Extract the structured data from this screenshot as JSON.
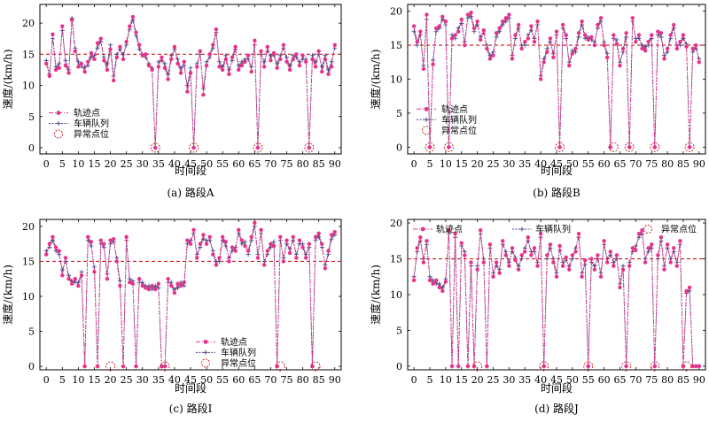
{
  "chart_data": [
    {
      "type": "line",
      "panel": "A",
      "caption": "(a) 路段A",
      "xlabel": "时间段",
      "ylabel": "速度/(km/h)",
      "xlim": [
        -2,
        92
      ],
      "ylim": [
        -1,
        23
      ],
      "xticks": [
        0,
        5,
        10,
        15,
        20,
        25,
        30,
        35,
        40,
        45,
        50,
        55,
        60,
        65,
        70,
        75,
        80,
        85,
        90
      ],
      "yticks": [
        0,
        5,
        10,
        15,
        20
      ],
      "reference_line": 15,
      "legend": {
        "position": "lower-left",
        "entries": [
          "轨迹点",
          "车辆队列",
          "异常点位"
        ]
      },
      "anomalies": [
        {
          "x": 34,
          "y": 0
        },
        {
          "x": 46,
          "y": 0
        },
        {
          "x": 66,
          "y": 0
        },
        {
          "x": 82,
          "y": 0
        }
      ],
      "series": [
        {
          "name": "轨迹点",
          "values": [
            13.5,
            11.5,
            18.2,
            12.5,
            12.8,
            19.5,
            13.2,
            12.0,
            20.5,
            15.5,
            13.0,
            13.5,
            12.2,
            13.8,
            15.2,
            14.2,
            16.8,
            17.5,
            14.0,
            12.5,
            15.8,
            10.8,
            14.5,
            16.2,
            14.2,
            17.0,
            19.5,
            21.0,
            18.5,
            16.5,
            14.8,
            15.0,
            13.2,
            12.5,
            0.0,
            13.0,
            14.5,
            12.8,
            11.0,
            14.2,
            16.2,
            13.5,
            12.0,
            13.8,
            9.0,
            12.0,
            0.0,
            13.0,
            15.5,
            8.5,
            13.2,
            15.0,
            16.5,
            19.0,
            13.0,
            12.5,
            14.2,
            11.8,
            14.5,
            16.2,
            12.5,
            13.2,
            13.8,
            14.8,
            12.2,
            17.2,
            0.0,
            15.5,
            13.0,
            16.2,
            14.0,
            15.2,
            12.8,
            14.2,
            16.5,
            13.8,
            12.5,
            14.2,
            15.0,
            13.2,
            14.8,
            13.8,
            0.0,
            14.2,
            13.0,
            15.5,
            12.2,
            14.2,
            11.8,
            13.0,
            16.5
          ]
        },
        {
          "name": "车辆队列",
          "values": [
            14.0,
            11.8,
            17.5,
            13.0,
            13.5,
            18.8,
            14.0,
            12.5,
            20.8,
            16.0,
            13.8,
            13.0,
            13.0,
            13.2,
            14.5,
            14.8,
            16.0,
            17.0,
            14.5,
            13.5,
            16.5,
            11.5,
            15.0,
            15.8,
            15.0,
            16.5,
            19.0,
            20.5,
            18.0,
            15.8,
            15.0,
            14.5,
            13.5,
            12.8,
            0.0,
            13.8,
            14.0,
            13.5,
            11.8,
            14.8,
            15.8,
            14.2,
            12.8,
            13.2,
            10.0,
            12.8,
            0.0,
            13.5,
            15.0,
            9.5,
            13.8,
            14.5,
            16.0,
            18.5,
            13.8,
            13.0,
            14.8,
            12.5,
            14.0,
            15.8,
            13.2,
            13.8,
            14.2,
            14.2,
            13.0,
            16.5,
            0.0,
            15.0,
            13.8,
            15.5,
            14.8,
            14.8,
            13.5,
            14.8,
            16.0,
            14.5,
            13.2,
            14.8,
            14.5,
            13.8,
            14.2,
            14.2,
            0.0,
            14.8,
            13.8,
            15.0,
            13.0,
            14.8,
            12.5,
            13.8,
            16.0
          ]
        }
      ]
    },
    {
      "type": "line",
      "panel": "B",
      "caption": "(b) 路段B",
      "xlabel": "时间段",
      "ylabel": "速度/(km/h)",
      "xlim": [
        -2,
        92
      ],
      "ylim": [
        -1,
        21
      ],
      "xticks": [
        0,
        5,
        10,
        15,
        20,
        25,
        30,
        35,
        40,
        45,
        50,
        55,
        60,
        65,
        70,
        75,
        80,
        85,
        90
      ],
      "yticks": [
        0,
        5,
        10,
        15,
        20
      ],
      "reference_line": 15,
      "legend": {
        "position": "lower-left",
        "entries": [
          "轨迹点",
          "车辆队列",
          "异常点位"
        ]
      },
      "anomalies": [
        {
          "x": 5,
          "y": 0
        },
        {
          "x": 11,
          "y": 0
        },
        {
          "x": 46,
          "y": 0
        },
        {
          "x": 63,
          "y": 0
        },
        {
          "x": 68,
          "y": 0
        },
        {
          "x": 76,
          "y": 0
        },
        {
          "x": 87,
          "y": 0
        }
      ],
      "series": [
        {
          "name": "轨迹点",
          "values": [
            17.8,
            15.5,
            17.0,
            11.5,
            19.5,
            0.0,
            12.2,
            17.5,
            17.8,
            19.2,
            18.5,
            0.0,
            16.0,
            16.5,
            17.0,
            18.8,
            15.0,
            19.5,
            19.8,
            17.5,
            18.5,
            15.8,
            17.2,
            14.5,
            13.0,
            13.5,
            16.8,
            17.5,
            18.5,
            19.0,
            19.5,
            13.0,
            16.5,
            18.0,
            14.5,
            15.5,
            16.0,
            17.8,
            15.5,
            18.5,
            10.0,
            12.5,
            14.0,
            16.0,
            13.2,
            17.0,
            0.0,
            18.0,
            16.5,
            12.0,
            13.8,
            14.5,
            16.8,
            18.5,
            16.5,
            15.8,
            16.2,
            15.0,
            18.0,
            19.0,
            15.0,
            13.2,
            0.0,
            16.5,
            15.2,
            12.0,
            14.5,
            16.8,
            0.0,
            19.0,
            15.5,
            16.5,
            14.5,
            14.2,
            15.5,
            16.5,
            0.0,
            17.0,
            16.8,
            13.0,
            14.5,
            16.5,
            18.0,
            14.5,
            15.5,
            16.5,
            14.8,
            0.0,
            14.5,
            15.0,
            12.5
          ]
        },
        {
          "name": "车辆队列",
          "values": [
            17.0,
            15.0,
            16.5,
            12.0,
            18.8,
            0.0,
            12.8,
            17.0,
            17.5,
            18.8,
            18.0,
            0.0,
            16.5,
            16.0,
            17.5,
            18.2,
            15.5,
            19.0,
            19.2,
            17.0,
            18.0,
            16.2,
            16.8,
            15.0,
            13.5,
            14.0,
            16.2,
            17.0,
            18.0,
            18.5,
            19.0,
            13.5,
            16.0,
            17.5,
            15.0,
            15.0,
            16.5,
            17.2,
            16.0,
            18.0,
            10.5,
            13.0,
            14.5,
            15.5,
            13.8,
            16.5,
            0.0,
            17.5,
            16.0,
            12.5,
            14.2,
            14.0,
            16.2,
            18.0,
            16.0,
            16.2,
            15.8,
            15.5,
            17.5,
            18.5,
            15.5,
            13.8,
            0.0,
            16.0,
            15.8,
            12.5,
            14.0,
            16.2,
            0.0,
            18.5,
            16.0,
            16.0,
            15.0,
            14.8,
            15.0,
            16.0,
            0.0,
            16.5,
            16.2,
            13.5,
            14.0,
            16.0,
            17.5,
            15.0,
            15.0,
            16.0,
            15.2,
            0.0,
            14.0,
            14.5,
            13.0
          ]
        }
      ]
    },
    {
      "type": "line",
      "panel": "I",
      "caption": "(c) 路段I",
      "xlabel": "时间段",
      "ylabel": "速度/(km/h)",
      "xlim": [
        -2,
        92
      ],
      "ylim": [
        -0.5,
        21
      ],
      "xticks": [
        0,
        5,
        10,
        15,
        20,
        25,
        30,
        35,
        40,
        45,
        50,
        55,
        60,
        65,
        70,
        75,
        80,
        85,
        90
      ],
      "yticks": [
        0,
        5,
        10,
        15,
        20
      ],
      "reference_line": 15,
      "legend": {
        "position": "lower-right",
        "entries": [
          "轨迹点",
          "车辆队列",
          "异常点位"
        ]
      },
      "anomalies": [
        {
          "x": 20,
          "y": 0
        },
        {
          "x": 37,
          "y": 0
        },
        {
          "x": 73,
          "y": 0
        },
        {
          "x": 84,
          "y": 0
        }
      ],
      "series": [
        {
          "name": "轨迹点",
          "values": [
            16.0,
            17.5,
            18.5,
            17.0,
            16.5,
            13.0,
            15.5,
            12.5,
            11.8,
            12.5,
            11.5,
            13.0,
            0.0,
            18.5,
            17.8,
            13.5,
            0.0,
            18.0,
            17.5,
            12.5,
            18.0,
            18.2,
            15.0,
            11.5,
            0.0,
            18.5,
            12.0,
            11.8,
            0.0,
            12.5,
            11.5,
            11.2,
            11.0,
            11.5,
            11.0,
            11.8,
            0.0,
            0.0,
            12.5,
            11.5,
            10.5,
            11.8,
            11.5,
            12.0,
            18.0,
            17.5,
            19.5,
            15.5,
            17.5,
            18.8,
            17.5,
            18.5,
            16.0,
            14.5,
            15.5,
            18.5,
            17.8,
            15.0,
            17.0,
            16.5,
            19.5,
            18.0,
            17.2,
            16.5,
            18.5,
            20.5,
            15.5,
            19.5,
            14.5,
            16.5,
            17.5,
            17.2,
            0.0,
            18.5,
            15.0,
            18.0,
            16.2,
            18.5,
            15.5,
            18.0,
            17.0,
            15.5,
            17.5,
            0.0,
            18.5,
            19.0,
            17.5,
            14.0,
            16.5,
            18.8,
            19.2
          ]
        },
        {
          "name": "车辆队列",
          "values": [
            16.5,
            17.0,
            18.0,
            16.5,
            16.0,
            13.8,
            15.0,
            13.0,
            12.2,
            12.0,
            12.0,
            13.5,
            0.0,
            18.0,
            17.2,
            14.2,
            0.0,
            17.5,
            17.0,
            13.2,
            17.5,
            17.8,
            15.5,
            12.2,
            0.0,
            18.0,
            12.5,
            12.2,
            0.0,
            12.0,
            12.0,
            11.5,
            11.5,
            11.0,
            11.5,
            11.2,
            0.0,
            0.0,
            12.0,
            12.0,
            11.0,
            11.2,
            12.0,
            11.5,
            17.5,
            18.0,
            19.0,
            16.0,
            17.0,
            18.2,
            18.0,
            18.0,
            16.5,
            15.0,
            15.0,
            18.0,
            17.2,
            15.5,
            16.5,
            17.0,
            19.0,
            17.5,
            17.8,
            16.0,
            18.0,
            20.0,
            16.0,
            19.0,
            15.0,
            16.0,
            17.0,
            17.8,
            0.0,
            18.0,
            15.5,
            17.5,
            16.8,
            18.0,
            16.0,
            17.5,
            17.5,
            16.0,
            17.0,
            0.0,
            18.0,
            18.5,
            17.0,
            14.5,
            16.0,
            18.2,
            18.8
          ]
        }
      ]
    },
    {
      "type": "line",
      "panel": "J",
      "caption": "(d) 路段J",
      "xlabel": "时间段",
      "ylabel": "速度/(km/h)",
      "xlim": [
        -2,
        92
      ],
      "ylim": [
        -0.5,
        20.5
      ],
      "xticks": [
        0,
        5,
        10,
        15,
        20,
        25,
        30,
        35,
        40,
        45,
        50,
        55,
        60,
        65,
        70,
        75,
        80,
        85,
        90
      ],
      "yticks": [
        0,
        5,
        10,
        15,
        20
      ],
      "reference_line": 15,
      "legend": {
        "position": "top",
        "entries": [
          "轨迹点",
          "车辆队列",
          "异常点位"
        ]
      },
      "anomalies": [
        {
          "x": 20,
          "y": 0
        },
        {
          "x": 41,
          "y": 0
        },
        {
          "x": 55,
          "y": 0
        },
        {
          "x": 67,
          "y": 0
        },
        {
          "x": 76,
          "y": 0
        },
        {
          "x": 86,
          "y": 0
        }
      ],
      "series": [
        {
          "name": "轨迹点",
          "values": [
            12.0,
            16.5,
            18.0,
            14.5,
            17.5,
            12.0,
            11.5,
            12.0,
            11.0,
            10.5,
            11.8,
            19.0,
            0.0,
            18.5,
            0.0,
            17.2,
            15.5,
            0.0,
            14.5,
            0.0,
            13.5,
            19.0,
            14.5,
            0.0,
            17.0,
            12.5,
            14.5,
            13.0,
            17.5,
            15.5,
            14.0,
            16.5,
            14.8,
            13.5,
            15.5,
            16.0,
            18.0,
            15.5,
            16.5,
            14.0,
            18.5,
            0.0,
            15.5,
            17.0,
            14.5,
            12.5,
            16.8,
            14.0,
            15.2,
            13.5,
            15.5,
            16.0,
            18.5,
            12.5,
            14.8,
            0.0,
            15.0,
            13.5,
            15.5,
            12.5,
            17.5,
            14.5,
            16.0,
            14.0,
            15.5,
            11.0,
            13.5,
            0.0,
            14.0,
            16.5,
            16.2,
            18.5,
            19.0,
            14.5,
            16.5,
            17.0,
            0.0,
            15.5,
            18.0,
            13.5,
            17.0,
            14.5,
            16.5,
            14.0,
            17.5,
            0.0,
            10.5,
            11.0,
            0.0,
            0.0,
            0.0
          ]
        },
        {
          "name": "车辆队列",
          "values": [
            12.5,
            16.0,
            17.5,
            15.0,
            17.0,
            12.5,
            12.0,
            11.5,
            11.5,
            11.0,
            12.2,
            18.5,
            0.0,
            18.0,
            0.0,
            16.8,
            16.0,
            0.0,
            14.0,
            0.0,
            14.0,
            18.5,
            15.0,
            0.0,
            16.5,
            13.0,
            14.0,
            13.5,
            17.0,
            16.0,
            14.5,
            16.0,
            15.2,
            14.0,
            15.0,
            16.5,
            17.5,
            16.0,
            16.0,
            14.5,
            18.0,
            0.0,
            15.0,
            16.5,
            15.0,
            13.0,
            16.2,
            14.5,
            14.8,
            14.0,
            15.0,
            16.5,
            18.0,
            13.0,
            14.2,
            0.0,
            14.5,
            14.0,
            15.0,
            13.0,
            17.0,
            15.0,
            15.5,
            14.5,
            15.0,
            11.5,
            14.0,
            0.0,
            14.5,
            16.0,
            16.8,
            18.0,
            18.5,
            15.0,
            16.0,
            16.5,
            0.0,
            15.0,
            17.5,
            14.0,
            16.5,
            15.0,
            16.0,
            14.5,
            17.0,
            0.0,
            10.2,
            10.5,
            0.0,
            0.0,
            0.0
          ]
        }
      ]
    }
  ],
  "colors": {
    "trajectory": "#e8318a",
    "queue": "#4a4a8c",
    "fill": "#8f8088",
    "reference": "#d11f1f",
    "anomaly": "#d11f1f"
  },
  "legend_symbols": {
    "trajectory": "pink-dot-dash-line",
    "queue": "navy-dotted-plus-line",
    "anomaly": "red-dashed-circle"
  }
}
